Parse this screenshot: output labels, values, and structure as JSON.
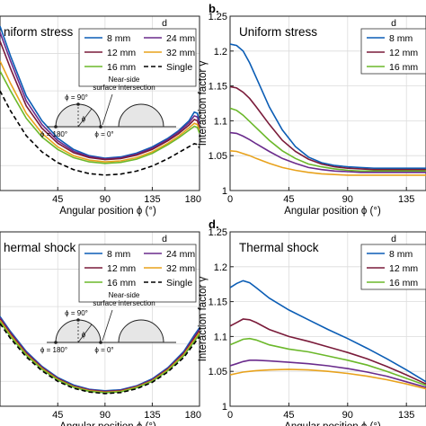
{
  "colors": {
    "8 mm": "#0b5db5",
    "12 mm": "#7a1b3a",
    "16 mm": "#6bb82a",
    "24 mm": "#6a2b8c",
    "32 mm": "#e8a21c",
    "Single": "#000000"
  },
  "chart_data": [
    {
      "id": "a",
      "type": "line",
      "panel_label": "",
      "title": "niform stress",
      "xlabel": "Angular position ϕ (°)",
      "ylabel": "",
      "xlim": [
        -10,
        180
      ],
      "ylim": [
        0.3,
        1.0
      ],
      "xticks": [
        "45",
        "90",
        "135",
        "180"
      ],
      "grid": true,
      "legend": {
        "title": "d",
        "placement": "top-right",
        "entries": [
          "8 mm",
          "12 mm",
          "16 mm",
          "24 mm",
          "32 mm",
          "Single"
        ]
      },
      "annotation": {
        "phi_top": "ϕ = 90°",
        "phi_left": "ϕ = 180°",
        "phi_right": "ϕ = 0°",
        "phi_mid": "ϕ",
        "callout_line1": "Near-side",
        "callout_line2": "surface intersection"
      },
      "series": [
        {
          "name": "8 mm",
          "x": [
            -10,
            0,
            15,
            30,
            45,
            60,
            75,
            90,
            105,
            120,
            135,
            150,
            160,
            170,
            175,
            178,
            180
          ],
          "y": [
            0.96,
            0.84,
            0.68,
            0.58,
            0.51,
            0.465,
            0.44,
            0.43,
            0.435,
            0.45,
            0.475,
            0.51,
            0.54,
            0.58,
            0.615,
            0.61,
            0.57
          ]
        },
        {
          "name": "24 mm",
          "x": [
            -10,
            0,
            15,
            30,
            45,
            60,
            75,
            90,
            105,
            120,
            135,
            150,
            160,
            170,
            175,
            178,
            180
          ],
          "y": [
            0.935,
            0.82,
            0.66,
            0.565,
            0.5,
            0.458,
            0.436,
            0.427,
            0.431,
            0.446,
            0.47,
            0.505,
            0.535,
            0.572,
            0.6,
            0.595,
            0.56
          ]
        },
        {
          "name": "12 mm",
          "x": [
            -10,
            0,
            15,
            30,
            45,
            60,
            75,
            90,
            105,
            120,
            135,
            150,
            160,
            170,
            175,
            178,
            180
          ],
          "y": [
            0.9,
            0.79,
            0.64,
            0.55,
            0.49,
            0.452,
            0.432,
            0.424,
            0.428,
            0.442,
            0.465,
            0.5,
            0.528,
            0.563,
            0.585,
            0.58,
            0.55
          ]
        },
        {
          "name": "32 mm",
          "x": [
            -10,
            0,
            15,
            30,
            45,
            60,
            75,
            90,
            105,
            120,
            135,
            150,
            160,
            170,
            175,
            178,
            180
          ],
          "y": [
            0.82,
            0.73,
            0.61,
            0.53,
            0.475,
            0.44,
            0.422,
            0.415,
            0.419,
            0.432,
            0.455,
            0.49,
            0.518,
            0.552,
            0.57,
            0.565,
            0.54
          ]
        },
        {
          "name": "16 mm",
          "x": [
            -10,
            0,
            15,
            30,
            45,
            60,
            75,
            90,
            105,
            120,
            135,
            150,
            160,
            170,
            175,
            178,
            180
          ],
          "y": [
            0.78,
            0.7,
            0.59,
            0.515,
            0.465,
            0.432,
            0.415,
            0.409,
            0.413,
            0.426,
            0.449,
            0.484,
            0.511,
            0.542,
            0.558,
            0.553,
            0.53
          ]
        },
        {
          "name": "Single",
          "dash": true,
          "x": [
            -10,
            0,
            15,
            30,
            45,
            60,
            75,
            90,
            105,
            120,
            135,
            150,
            160,
            170,
            175,
            178,
            180
          ],
          "y": [
            0.7,
            0.62,
            0.52,
            0.455,
            0.412,
            0.384,
            0.368,
            0.362,
            0.366,
            0.378,
            0.398,
            0.428,
            0.452,
            0.476,
            0.488,
            0.485,
            0.47
          ]
        }
      ]
    },
    {
      "id": "b",
      "type": "line",
      "panel_label": "b.",
      "title": "Uniform stress",
      "xlabel": "Angular position ϕ (°)",
      "ylabel": "Interaction factor γ",
      "xlim": [
        0,
        150
      ],
      "ylim": [
        1.0,
        1.25
      ],
      "yticks": [
        "1",
        "1.05",
        "1.1",
        "1.15",
        "1.2",
        "1.25"
      ],
      "xticks": [
        "0",
        "45",
        "90",
        "135"
      ],
      "grid": true,
      "legend": {
        "title": "d",
        "placement": "top-right",
        "entries": [
          "8 mm",
          "12 mm",
          "16 mm"
        ]
      },
      "series": [
        {
          "name": "8 mm",
          "x": [
            0,
            5,
            10,
            15,
            20,
            30,
            40,
            50,
            60,
            70,
            80,
            90,
            100,
            110,
            120,
            135,
            150
          ],
          "y": [
            1.21,
            1.208,
            1.2,
            1.183,
            1.162,
            1.12,
            1.087,
            1.063,
            1.048,
            1.04,
            1.036,
            1.034,
            1.033,
            1.032,
            1.032,
            1.032,
            1.032
          ]
        },
        {
          "name": "12 mm",
          "x": [
            0,
            5,
            10,
            15,
            20,
            30,
            40,
            50,
            60,
            70,
            80,
            90,
            100,
            110,
            120,
            135,
            150
          ],
          "y": [
            1.149,
            1.147,
            1.141,
            1.132,
            1.12,
            1.095,
            1.072,
            1.056,
            1.045,
            1.038,
            1.034,
            1.032,
            1.031,
            1.03,
            1.03,
            1.03,
            1.03
          ]
        },
        {
          "name": "16 mm",
          "x": [
            0,
            5,
            10,
            15,
            20,
            30,
            40,
            50,
            60,
            70,
            80,
            90,
            100,
            110,
            120,
            135,
            150
          ],
          "y": [
            1.118,
            1.115,
            1.108,
            1.099,
            1.09,
            1.072,
            1.057,
            1.046,
            1.038,
            1.034,
            1.031,
            1.029,
            1.028,
            1.028,
            1.028,
            1.028,
            1.028
          ]
        },
        {
          "name": "24 mm",
          "x": [
            0,
            5,
            10,
            15,
            20,
            30,
            40,
            50,
            60,
            70,
            80,
            90,
            100,
            110,
            120,
            135,
            150
          ],
          "y": [
            1.083,
            1.082,
            1.078,
            1.073,
            1.067,
            1.056,
            1.046,
            1.039,
            1.033,
            1.03,
            1.028,
            1.027,
            1.026,
            1.026,
            1.026,
            1.026,
            1.026
          ]
        },
        {
          "name": "32 mm",
          "x": [
            0,
            5,
            10,
            15,
            20,
            30,
            40,
            50,
            60,
            70,
            80,
            90,
            100,
            110,
            120,
            135,
            150
          ],
          "y": [
            1.057,
            1.056,
            1.053,
            1.05,
            1.046,
            1.039,
            1.033,
            1.029,
            1.026,
            1.024,
            1.023,
            1.022,
            1.022,
            1.022,
            1.022,
            1.022,
            1.022
          ]
        }
      ]
    },
    {
      "id": "c",
      "type": "line",
      "panel_label": "",
      "title": "hermal shock",
      "xlabel": "Angular position ϕ (°)",
      "ylabel": "",
      "xlim": [
        -10,
        180
      ],
      "ylim": [
        0.3,
        1.0
      ],
      "xticks": [
        "45",
        "90",
        "135",
        "180"
      ],
      "grid": true,
      "legend": {
        "title": "d",
        "placement": "top-right",
        "entries": [
          "8 mm",
          "12 mm",
          "16 mm",
          "24 mm",
          "32 mm",
          "Single"
        ]
      },
      "annotation": {
        "phi_top": "ϕ = 90°",
        "phi_left": "ϕ = 180°",
        "phi_right": "ϕ = 0°",
        "phi_mid": "ϕ",
        "callout_line1": "Near-side",
        "callout_line2": "surface intersection"
      },
      "series": [
        {
          "name": "8 mm",
          "x": [
            -10,
            0,
            15,
            30,
            45,
            60,
            75,
            90,
            105,
            120,
            135,
            150,
            165,
            175,
            180
          ],
          "y": [
            0.66,
            0.6,
            0.52,
            0.46,
            0.415,
            0.385,
            0.368,
            0.362,
            0.366,
            0.382,
            0.41,
            0.455,
            0.52,
            0.585,
            0.615
          ]
        },
        {
          "name": "24 mm",
          "x": [
            -10,
            0,
            15,
            30,
            45,
            60,
            75,
            90,
            105,
            120,
            135,
            150,
            165,
            175,
            180
          ],
          "y": [
            0.655,
            0.595,
            0.516,
            0.457,
            0.412,
            0.382,
            0.366,
            0.36,
            0.364,
            0.38,
            0.407,
            0.452,
            0.515,
            0.578,
            0.608
          ]
        },
        {
          "name": "12 mm",
          "x": [
            -10,
            0,
            15,
            30,
            45,
            60,
            75,
            90,
            105,
            120,
            135,
            150,
            165,
            175,
            180
          ],
          "y": [
            0.65,
            0.59,
            0.512,
            0.454,
            0.41,
            0.38,
            0.364,
            0.358,
            0.362,
            0.378,
            0.404,
            0.449,
            0.511,
            0.572,
            0.602
          ]
        },
        {
          "name": "32 mm",
          "x": [
            -10,
            0,
            15,
            30,
            45,
            60,
            75,
            90,
            105,
            120,
            135,
            150,
            165,
            175,
            180
          ],
          "y": [
            0.645,
            0.585,
            0.508,
            0.451,
            0.407,
            0.378,
            0.362,
            0.356,
            0.36,
            0.376,
            0.402,
            0.446,
            0.507,
            0.566,
            0.596
          ]
        },
        {
          "name": "16 mm",
          "x": [
            -10,
            0,
            15,
            30,
            45,
            60,
            75,
            90,
            105,
            120,
            135,
            150,
            165,
            175,
            180
          ],
          "y": [
            0.64,
            0.58,
            0.505,
            0.448,
            0.405,
            0.376,
            0.36,
            0.354,
            0.358,
            0.374,
            0.4,
            0.443,
            0.503,
            0.56,
            0.59
          ]
        },
        {
          "name": "Single",
          "dash": true,
          "x": [
            -10,
            0,
            15,
            30,
            45,
            60,
            75,
            90,
            105,
            120,
            135,
            150,
            165,
            175,
            180
          ],
          "y": [
            0.632,
            0.572,
            0.498,
            0.442,
            0.4,
            0.372,
            0.357,
            0.351,
            0.355,
            0.37,
            0.396,
            0.438,
            0.496,
            0.552,
            0.58
          ]
        }
      ]
    },
    {
      "id": "d",
      "type": "line",
      "panel_label": "d.",
      "title": "Thermal shock",
      "xlabel": "Angular position ϕ (°)",
      "ylabel": "Interaction factor γ",
      "xlim": [
        0,
        150
      ],
      "ylim": [
        1.0,
        1.25
      ],
      "yticks": [
        "1",
        "1.05",
        "1.1",
        "1.15",
        "1.2",
        "1.25"
      ],
      "xticks": [
        "0",
        "45",
        "90",
        "135"
      ],
      "grid": true,
      "legend": {
        "title": "d",
        "placement": "top-right",
        "entries": [
          "8 mm",
          "12 mm",
          "16 mm"
        ]
      },
      "series": [
        {
          "name": "8 mm",
          "x": [
            0,
            5,
            10,
            15,
            20,
            30,
            45,
            60,
            75,
            90,
            105,
            120,
            135,
            150
          ],
          "y": [
            1.17,
            1.176,
            1.18,
            1.177,
            1.17,
            1.155,
            1.138,
            1.124,
            1.11,
            1.097,
            1.083,
            1.068,
            1.052,
            1.035
          ]
        },
        {
          "name": "12 mm",
          "x": [
            0,
            5,
            10,
            15,
            20,
            30,
            45,
            60,
            75,
            90,
            105,
            120,
            135,
            150
          ],
          "y": [
            1.115,
            1.12,
            1.125,
            1.124,
            1.12,
            1.11,
            1.1,
            1.093,
            1.085,
            1.077,
            1.068,
            1.057,
            1.045,
            1.032
          ]
        },
        {
          "name": "16 mm",
          "x": [
            0,
            5,
            10,
            15,
            20,
            30,
            45,
            60,
            75,
            90,
            105,
            120,
            135,
            150
          ],
          "y": [
            1.088,
            1.092,
            1.096,
            1.097,
            1.095,
            1.088,
            1.082,
            1.078,
            1.072,
            1.066,
            1.059,
            1.05,
            1.04,
            1.03
          ]
        },
        {
          "name": "24 mm",
          "x": [
            0,
            5,
            10,
            15,
            20,
            30,
            45,
            60,
            75,
            90,
            105,
            120,
            135,
            150
          ],
          "y": [
            1.058,
            1.061,
            1.064,
            1.066,
            1.066,
            1.065,
            1.063,
            1.061,
            1.058,
            1.054,
            1.049,
            1.043,
            1.035,
            1.027
          ]
        },
        {
          "name": "32 mm",
          "x": [
            0,
            5,
            10,
            15,
            20,
            30,
            45,
            60,
            75,
            90,
            105,
            120,
            135,
            150
          ],
          "y": [
            1.045,
            1.047,
            1.049,
            1.05,
            1.051,
            1.052,
            1.053,
            1.052,
            1.05,
            1.047,
            1.043,
            1.038,
            1.032,
            1.025
          ]
        }
      ]
    }
  ]
}
